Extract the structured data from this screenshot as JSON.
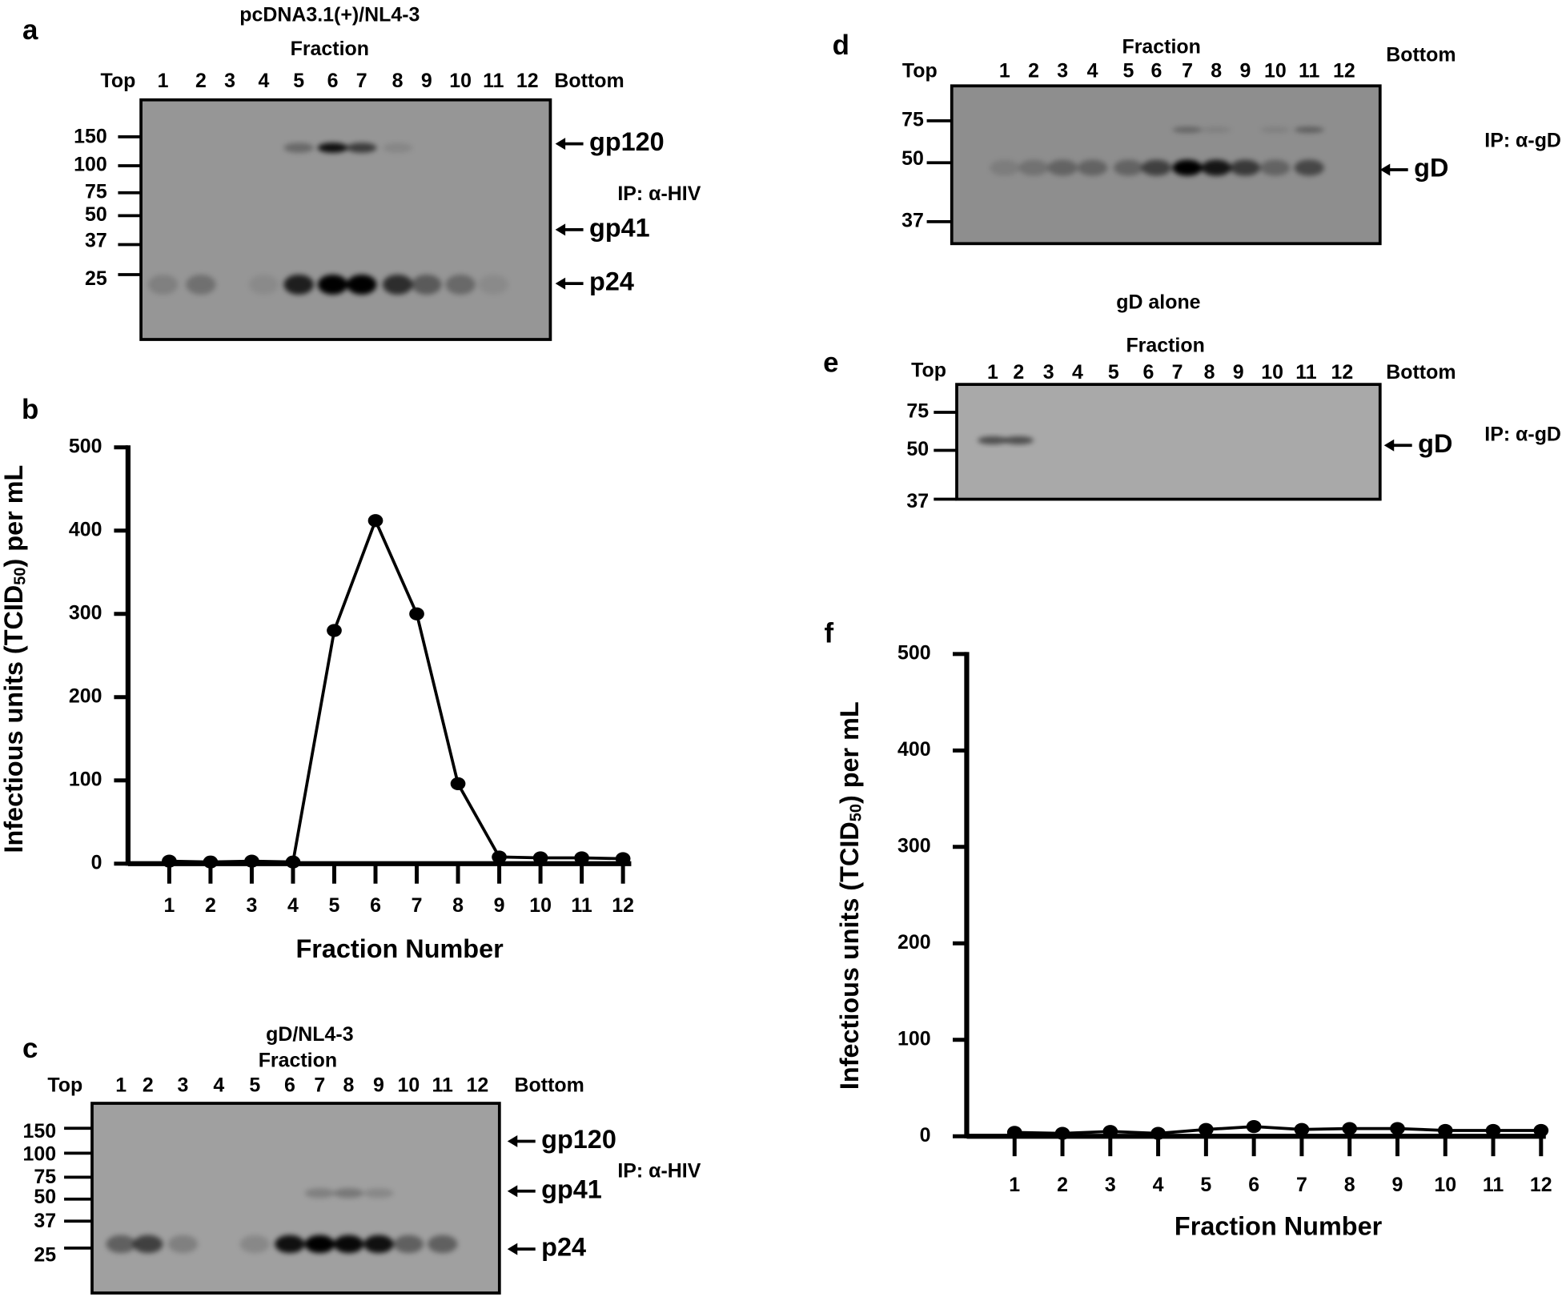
{
  "blots": [
    {
      "panel": "a",
      "title": "pcDNA3.1(+)/NL4-3",
      "fraction_label": "Fraction",
      "top": "Top",
      "bottom": "Bottom",
      "lanes": [
        "1",
        "2",
        "3",
        "4",
        "5",
        "6",
        "7",
        "8",
        "9",
        "10",
        "11",
        "12"
      ],
      "markers": [
        "150",
        "100",
        "75",
        "50",
        "37",
        "25"
      ],
      "bands": [
        "gp120",
        "gp41",
        "p24"
      ],
      "ip": "IP: α-HIV"
    },
    {
      "panel": "c",
      "title": "gD/NL4-3",
      "fraction_label": "Fraction",
      "top": "Top",
      "bottom": "Bottom",
      "lanes": [
        "1",
        "2",
        "3",
        "4",
        "5",
        "6",
        "7",
        "8",
        "9",
        "10",
        "11",
        "12"
      ],
      "markers": [
        "150",
        "100",
        "75",
        "50",
        "37",
        "25"
      ],
      "bands": [
        "gp120",
        "gp41",
        "p24"
      ],
      "ip": "IP: α-HIV"
    },
    {
      "panel": "d",
      "fraction_label": "Fraction",
      "top": "Top",
      "bottom": "Bottom",
      "lanes": [
        "1",
        "2",
        "3",
        "4",
        "5",
        "6",
        "7",
        "8",
        "9",
        "10",
        "11",
        "12"
      ],
      "markers": [
        "75",
        "50",
        "37"
      ],
      "bands": [
        "gD"
      ],
      "ip": "IP: α-gD"
    },
    {
      "panel": "e",
      "title": "gD alone",
      "fraction_label": "Fraction",
      "top": "Top",
      "bottom": "Bottom",
      "lanes": [
        "1",
        "2",
        "3",
        "4",
        "5",
        "6",
        "7",
        "8",
        "9",
        "10",
        "11",
        "12"
      ],
      "markers": [
        "75",
        "50",
        "37"
      ],
      "bands": [
        "gD"
      ],
      "ip": "IP: α-gD"
    }
  ],
  "chart_data": [
    {
      "type": "line",
      "panel": "b",
      "xlabel": "Fraction Number",
      "ylabel": [
        "Infectious units (TCID",
        "50",
        ") per mL"
      ],
      "x": [
        1,
        2,
        3,
        4,
        5,
        6,
        7,
        8,
        9,
        10,
        11,
        12
      ],
      "values": [
        3,
        2,
        3,
        2,
        280,
        412,
        300,
        96,
        8,
        7,
        7,
        6
      ],
      "xlim": [
        0,
        12.2
      ],
      "xticks": [
        1,
        2,
        3,
        4,
        5,
        6,
        7,
        8,
        9,
        10,
        11,
        12
      ],
      "ylim": [
        0,
        500
      ],
      "yticks": [
        0,
        100,
        200,
        300,
        400,
        500
      ],
      "color": "#000000"
    },
    {
      "type": "line",
      "panel": "f",
      "xlabel": "Fraction Number",
      "ylabel": [
        "Infectious units (TCID",
        "50",
        ") per mL"
      ],
      "x": [
        1,
        2,
        3,
        4,
        5,
        6,
        7,
        8,
        9,
        10,
        11,
        12
      ],
      "values": [
        4,
        3,
        5,
        3,
        7,
        10,
        7,
        8,
        8,
        6,
        6,
        6
      ],
      "xlim": [
        0,
        12.1
      ],
      "xticks": [
        1,
        2,
        3,
        4,
        5,
        6,
        7,
        8,
        9,
        10,
        11,
        12
      ],
      "ylim": [
        0,
        500
      ],
      "yticks": [
        0,
        100,
        200,
        300,
        400,
        500
      ],
      "color": "#000000"
    }
  ]
}
